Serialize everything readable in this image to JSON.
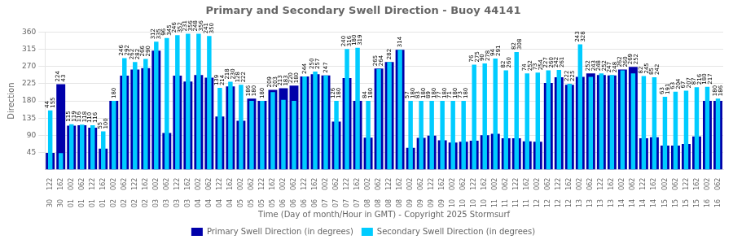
{
  "chart_data": {
    "type": "bar",
    "title": "Primary and Secondary Swell Direction - Buoy 44141",
    "xlabel": "Time (Day of month/Hour in GMT) - Copyright 2025 Stormsurf",
    "ylabel": "Direction",
    "categories": [
      [
        "122",
        "30"
      ],
      [
        "162",
        "30"
      ],
      [
        "002",
        "01"
      ],
      [
        "062",
        "01"
      ],
      [
        "122",
        "01"
      ],
      [
        "162",
        "01"
      ],
      [
        "002",
        "02"
      ],
      [
        "062",
        "02"
      ],
      [
        "122",
        "02"
      ],
      [
        "162",
        "02"
      ],
      [
        "002",
        "03"
      ],
      [
        "062",
        "03"
      ],
      [
        "122",
        "03"
      ],
      [
        "162",
        "03"
      ],
      [
        "002",
        "04"
      ],
      [
        "062",
        "04"
      ],
      [
        "122",
        "04"
      ],
      [
        "162",
        "04"
      ],
      [
        "002",
        "05"
      ],
      [
        "062",
        "05"
      ],
      [
        "122",
        "05"
      ],
      [
        "162",
        "05"
      ],
      [
        "002",
        "06"
      ],
      [
        "062",
        "06"
      ],
      [
        "122",
        "06"
      ],
      [
        "162",
        "06"
      ],
      [
        "002",
        "07"
      ],
      [
        "062",
        "07"
      ],
      [
        "122",
        "07"
      ],
      [
        "162",
        "07"
      ],
      [
        "002",
        "08"
      ],
      [
        "062",
        "08"
      ],
      [
        "122",
        "08"
      ],
      [
        "162",
        "08"
      ],
      [
        "002",
        "09"
      ],
      [
        "062",
        "09"
      ],
      [
        "122",
        "09"
      ],
      [
        "162",
        "09"
      ],
      [
        "002",
        "10"
      ],
      [
        "062",
        "10"
      ],
      [
        "122",
        "10"
      ],
      [
        "162",
        "10"
      ],
      [
        "002",
        "11"
      ],
      [
        "062",
        "11"
      ],
      [
        "122",
        "11"
      ],
      [
        "162",
        "11"
      ],
      [
        "002",
        "12"
      ],
      [
        "062",
        "12"
      ],
      [
        "122",
        "12"
      ],
      [
        "162",
        "12"
      ],
      [
        "002",
        "13"
      ],
      [
        "062",
        "13"
      ],
      [
        "122",
        "13"
      ],
      [
        "162",
        "13"
      ],
      [
        "002",
        "14"
      ],
      [
        "062",
        "14"
      ],
      [
        "122",
        "14"
      ],
      [
        "162",
        "14"
      ],
      [
        "002",
        "15"
      ],
      [
        "062",
        "15"
      ],
      [
        "122",
        "15"
      ],
      [
        "162",
        "15"
      ],
      [
        "002",
        "16"
      ],
      [
        "062",
        "16"
      ]
    ],
    "series": [
      {
        "name": "Primary Swell Direction (in degrees)",
        "color": "#0000AA",
        "values": [
          44,
          224,
          115,
          116,
          110,
          55,
          180,
          246,
          262,
          266,
          312,
          96,
          246,
          231,
          248,
          241,
          139,
          218,
          128,
          186,
          180,
          209,
          213,
          220,
          244,
          250,
          247,
          126,
          240,
          180,
          84,
          265,
          282,
          314,
          57,
          83,
          89,
          77,
          71,
          73,
          76,
          90,
          94,
          82,
          82,
          74,
          73,
          227,
          242,
          222,
          243,
          252,
          248,
          247,
          262,
          269,
          82,
          85,
          63,
          63,
          67,
          87,
          180,
          180
        ]
      },
      {
        "name": "Secondary Swell Direction (in degrees)",
        "color": "#00CCFF",
        "values": [
          155,
          43,
          119,
          118,
          116,
          100,
          180,
          292,
          282,
          290,
          335,
          345,
          352,
          356,
          356,
          350,
          214,
          230,
          222,
          180,
          180,
          203,
          183,
          180,
          244,
          257,
          247,
          180,
          316,
          319,
          180,
          264,
          282,
          314,
          180,
          180,
          180,
          180,
          180,
          180,
          275,
          278,
          291,
          260,
          308,
          252,
          254,
          260,
          261,
          225,
          328,
          243,
          252,
          248,
          260,
          252,
          245,
          242,
          191,
          204,
          207,
          216,
          217,
          186
        ]
      }
    ],
    "ylim": [
      0,
      360
    ],
    "yticks": [
      45,
      90,
      135,
      180,
      225,
      270,
      315,
      360
    ],
    "grid": true,
    "legend": "bottom",
    "data_labels": true
  }
}
